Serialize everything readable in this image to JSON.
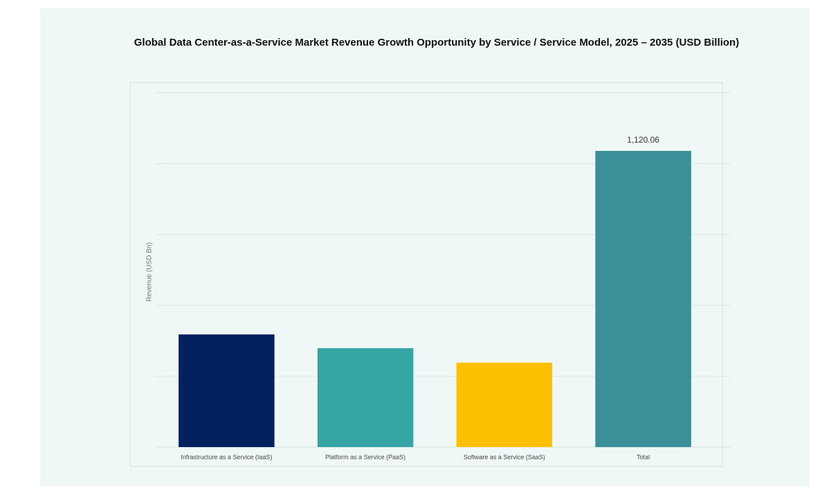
{
  "chart_data": {
    "type": "bar",
    "title": "Global Data Center-as-a-Service Market Revenue Growth Opportunity by Service / Service Model, 2025 – 2035 (USD Billion)",
    "y_label": "Revenue (USD Bn)",
    "categories": [
      "Infrastructure as a Service (IaaS)",
      "Platform as a Service (PaaS)",
      "Software as a Service (SaaS)",
      "Total"
    ],
    "values": [
      426,
      374,
      319,
      1120.06
    ],
    "value_labels": [
      null,
      null,
      null,
      "1,120.06"
    ],
    "colors": [
      "#03215e",
      "#35a5a5",
      "#fdc000",
      "#3b8f98"
    ],
    "ylim": [
      0,
      1340
    ],
    "yticks": [
      0,
      268,
      536,
      804,
      1072,
      1340
    ],
    "grid": true,
    "tick_labels": false
  }
}
